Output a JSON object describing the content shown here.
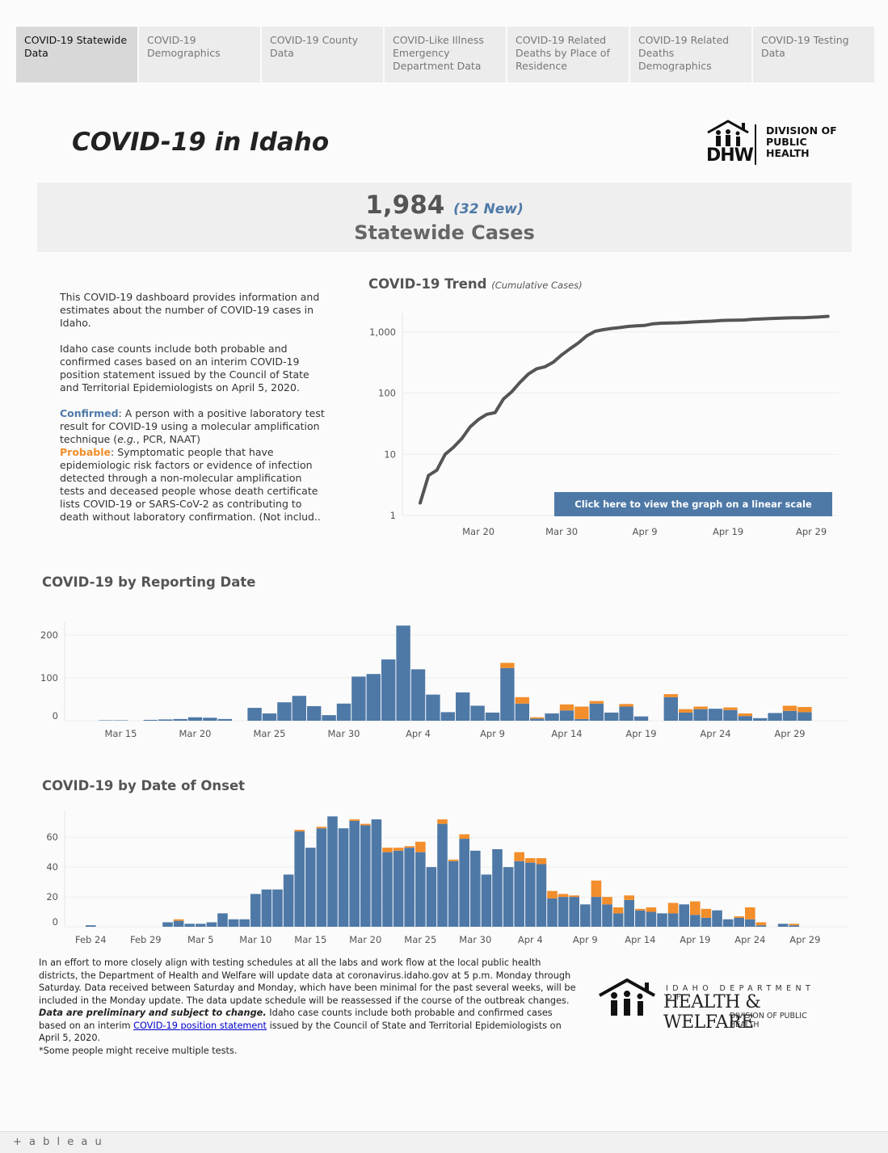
{
  "tabs": [
    {
      "label": "COVID-19 Statewide Data",
      "active": true
    },
    {
      "label": "COVID-19 Demographics",
      "active": false
    },
    {
      "label": "COVID-19 County Data",
      "active": false
    },
    {
      "label": "COVID-Like Illness Emergency Department Data",
      "active": false
    },
    {
      "label": "COVID-19 Related Deaths by Place of Residence",
      "active": false
    },
    {
      "label": "COVID-19 Related Deaths Demographics",
      "active": false
    },
    {
      "label": "COVID-19 Testing Data",
      "active": false
    }
  ],
  "header": {
    "title": "COVID-19 in Idaho",
    "logo": {
      "mark": "DHW",
      "text_lines": [
        "DIVISION OF",
        "PUBLIC",
        "HEALTH"
      ],
      "icon": "house-family-icon"
    }
  },
  "summary": {
    "total_cases": "1,984",
    "new_cases": "(32 New)",
    "label": "Statewide Cases"
  },
  "description": {
    "p1": "This COVID-19 dashboard provides information and estimates about the number of COVID-19 cases in Idaho.",
    "p2": "Idaho case counts include both probable and confirmed cases based on an interim COVID-19 position statement issued by the Council of State and Territorial Epidemiologists on April 5, 2020.",
    "confirmed_term": "Confirmed",
    "confirmed_def_a": ": A person with a positive laboratory test result for COVID-19 using a molecular amplification technique (",
    "confirmed_def_eg": "e.g.",
    "confirmed_def_b": ", PCR, NAAT)",
    "probable_term": "Probable",
    "probable_def": ": Symptomatic people that have epidemiologic risk factors or evidence of infection detected through a non-molecular amplification tests and deceased people whose death certificate lists  COVID-19 or SARS-CoV-2 as contributing to death without laboratory confirmation. (Not includ.."
  },
  "trend": {
    "title": "COVID-19 Trend",
    "subtitle": "(Cumulative Cases)",
    "button_label": "Click here to view the graph on a linear scale"
  },
  "reporting": {
    "title": "COVID-19 by Reporting Date"
  },
  "onset": {
    "title": "COVID-19 by Date of Onset"
  },
  "colors": {
    "confirmed": "#4e79a7",
    "probable": "#f28e2b",
    "line": "#555555"
  },
  "chart_data": [
    {
      "type": "line",
      "title": "COVID-19 Trend",
      "subtitle": "(Cumulative Cases)",
      "y_scale": "log",
      "ylim": [
        1,
        2000
      ],
      "y_ticks": [
        1,
        10,
        100,
        1000
      ],
      "y_tick_labels": [
        "1",
        "10",
        "100",
        "1,000"
      ],
      "x_ticks": [
        "Mar 20",
        "Mar 30",
        "Apr 9",
        "Apr 19",
        "Apr 29"
      ],
      "x_start": "Mar 13",
      "series": [
        {
          "values": [
            1.6,
            4.5,
            5.5,
            10,
            13,
            18,
            28,
            37,
            45,
            48,
            80,
            105,
            150,
            205,
            250,
            270,
            320,
            420,
            530,
            660,
            860,
            1020,
            1090,
            1140,
            1180,
            1230,
            1260,
            1280,
            1360,
            1390,
            1400,
            1410,
            1430,
            1460,
            1480,
            1500,
            1530,
            1550,
            1560,
            1570,
            1610,
            1630,
            1650,
            1670,
            1690,
            1700,
            1710,
            1730,
            1760,
            1800
          ]
        }
      ]
    },
    {
      "type": "bar",
      "stacked": true,
      "title": "COVID-19 by Reporting Date",
      "ylim": [
        0,
        230
      ],
      "y_ticks": [
        0,
        100,
        200
      ],
      "x_ticks": [
        "Mar 15",
        "Mar 20",
        "Mar 25",
        "Mar 30",
        "Apr 4",
        "Apr 9",
        "Apr 14",
        "Apr 19",
        "Apr 24",
        "Apr 29"
      ],
      "x_start": "Mar 13",
      "series": [
        {
          "name": "Confirmed",
          "values": [
            0,
            1,
            1,
            0,
            2,
            3,
            4,
            8,
            7,
            4,
            0,
            30,
            17,
            43,
            58,
            34,
            13,
            40,
            103,
            109,
            143,
            222,
            120,
            61,
            20,
            66,
            35,
            19,
            123,
            40,
            5,
            17,
            24,
            4,
            40,
            19,
            33,
            10,
            0,
            55,
            19,
            27,
            28,
            25,
            11,
            6,
            18,
            23,
            20
          ]
        },
        {
          "name": "Probable",
          "values": [
            0,
            0,
            0,
            0,
            0,
            0,
            0,
            0,
            0,
            0,
            0,
            0,
            0,
            0,
            0,
            0,
            0,
            0,
            0,
            0,
            0,
            0,
            0,
            0,
            0,
            0,
            0,
            0,
            12,
            15,
            3,
            0,
            14,
            29,
            6,
            0,
            6,
            0,
            0,
            7,
            8,
            6,
            0,
            6,
            6,
            0,
            0,
            12,
            12
          ]
        }
      ]
    },
    {
      "type": "bar",
      "stacked": true,
      "title": "COVID-19 by Date of Onset",
      "ylim": [
        0,
        78
      ],
      "y_ticks": [
        0,
        20,
        40,
        60
      ],
      "x_ticks": [
        "Feb 24",
        "Feb 29",
        "Mar 5",
        "Mar 10",
        "Mar 15",
        "Mar 20",
        "Mar 25",
        "Mar 30",
        "Apr 4",
        "Apr 9",
        "Apr 14",
        "Apr 19",
        "Apr 24",
        "Apr 29"
      ],
      "x_start": "Feb 24",
      "series": [
        {
          "name": "Confirmed",
          "values": [
            1,
            0,
            0,
            0,
            0,
            0,
            0,
            3,
            4,
            2,
            2,
            3,
            9,
            5,
            5,
            22,
            25,
            25,
            35,
            64,
            53,
            66,
            74,
            66,
            71,
            68,
            72,
            50,
            51,
            53,
            50,
            40,
            69,
            44,
            59,
            51,
            35,
            52,
            40,
            44,
            43,
            42,
            19,
            20,
            20,
            15,
            20,
            15,
            9,
            18,
            11,
            10,
            9,
            9,
            15,
            8,
            6,
            11,
            5,
            6,
            5,
            1,
            0,
            2,
            1
          ]
        },
        {
          "name": "Probable",
          "values": [
            0,
            0,
            0,
            0,
            0,
            0,
            0,
            0,
            1,
            0,
            0,
            0,
            0,
            0,
            0,
            0,
            0,
            0,
            0,
            1,
            0,
            1,
            0,
            0,
            1,
            1,
            0,
            3,
            2,
            1,
            7,
            0,
            3,
            1,
            3,
            0,
            0,
            0,
            0,
            6,
            3,
            4,
            5,
            2,
            1,
            0,
            11,
            5,
            4,
            3,
            1,
            3,
            0,
            7,
            0,
            9,
            6,
            0,
            0,
            1,
            8,
            2,
            0,
            0,
            1
          ]
        }
      ]
    }
  ],
  "footer": {
    "note_a": "In an effort to more closely align with testing schedules at all the labs and work flow at the local public health districts, the Department of Health and Welfare will update data at coronavirus.idaho.gov at 5 p.m. Monday through Saturday. Data received between Saturday and Monday, which have been minimal for the past several weeks, will be included in the Monday update. The data update schedule will be reassessed if the course of the outbreak changes. ",
    "note_bold": "Data are preliminary and subject to change.",
    "note_b": " Idaho case counts include both probable and confirmed cases based on an interim ",
    "link": "COVID-19 position statement",
    "note_c": " issued by the Council of State and Territorial Epidemiologists on April 5, 2020.",
    "note_d": "*Some people might receive multiple tests.",
    "logo_line1": "IDAHO DEPARTMENT OF",
    "logo_line2": "HEALTH & WELFARE",
    "logo_line3": "DIVISION OF PUBLIC HEALTH"
  },
  "tableau": {
    "label": "+ a b l e a u"
  }
}
